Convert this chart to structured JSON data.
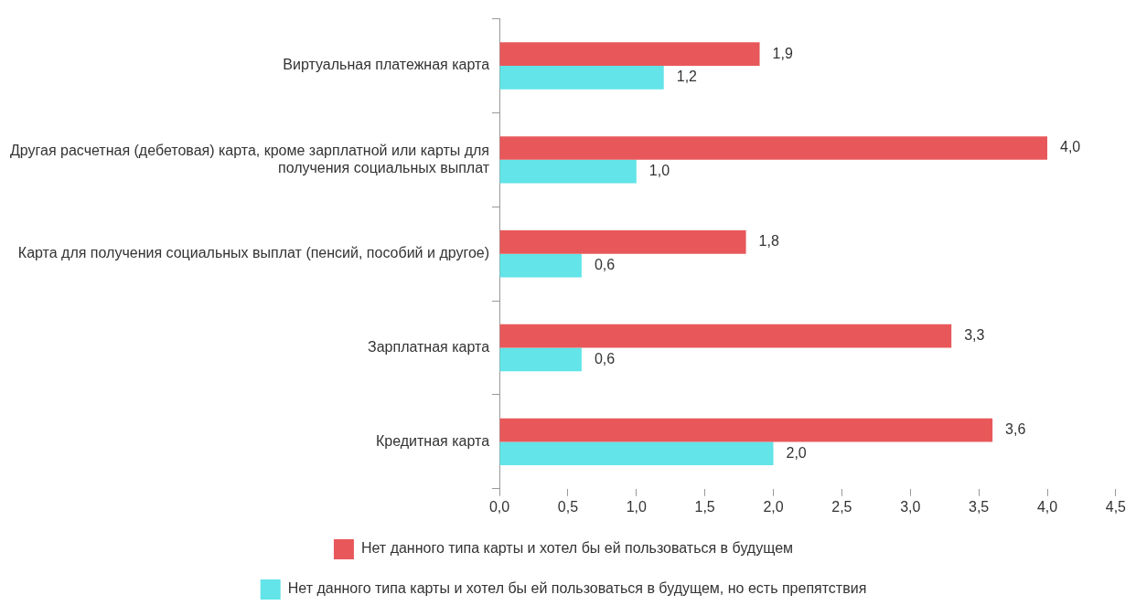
{
  "chart_data": {
    "type": "bar",
    "orientation": "horizontal",
    "categories": [
      "Виртуальная платежная карта",
      "Другая расчетная (дебетовая) карта, кроме зарплатной или карты для получения социальных выплат",
      "Карта для получения социальных выплат (пенсий, пособий и другое)",
      "Зарплатная карта",
      "Кредитная карта"
    ],
    "series": [
      {
        "name": "Нет данного типа карты и хотел бы ей пользоваться в будущем",
        "color": "#e8585a",
        "values": [
          1.9,
          4.0,
          1.8,
          3.3,
          3.6
        ],
        "value_labels": [
          "1,9",
          "4,0",
          "1,8",
          "3,3",
          "3,6"
        ]
      },
      {
        "name": "Нет данного типа карты и хотел бы ей пользоваться в будущем, но есть препятствия",
        "color": "#62e4e8",
        "values": [
          1.2,
          1.0,
          0.6,
          0.6,
          2.0
        ],
        "value_labels": [
          "1,2",
          "1,0",
          "0,6",
          "0,6",
          "2,0"
        ]
      }
    ],
    "xlim": [
      0,
      4.5
    ],
    "xticks": [
      {
        "value": 0,
        "label": "0,0"
      },
      {
        "value": 0.5,
        "label": "0,5"
      },
      {
        "value": 1,
        "label": "1,0"
      },
      {
        "value": 1.5,
        "label": "1,5"
      },
      {
        "value": 2,
        "label": "2,0"
      },
      {
        "value": 2.5,
        "label": "2,5"
      },
      {
        "value": 3,
        "label": "3,0"
      },
      {
        "value": 3.5,
        "label": "3,5"
      },
      {
        "value": 4,
        "label": "4,0"
      },
      {
        "value": 4.5,
        "label": "4,5"
      }
    ],
    "grid": false,
    "legend": "bottom"
  }
}
